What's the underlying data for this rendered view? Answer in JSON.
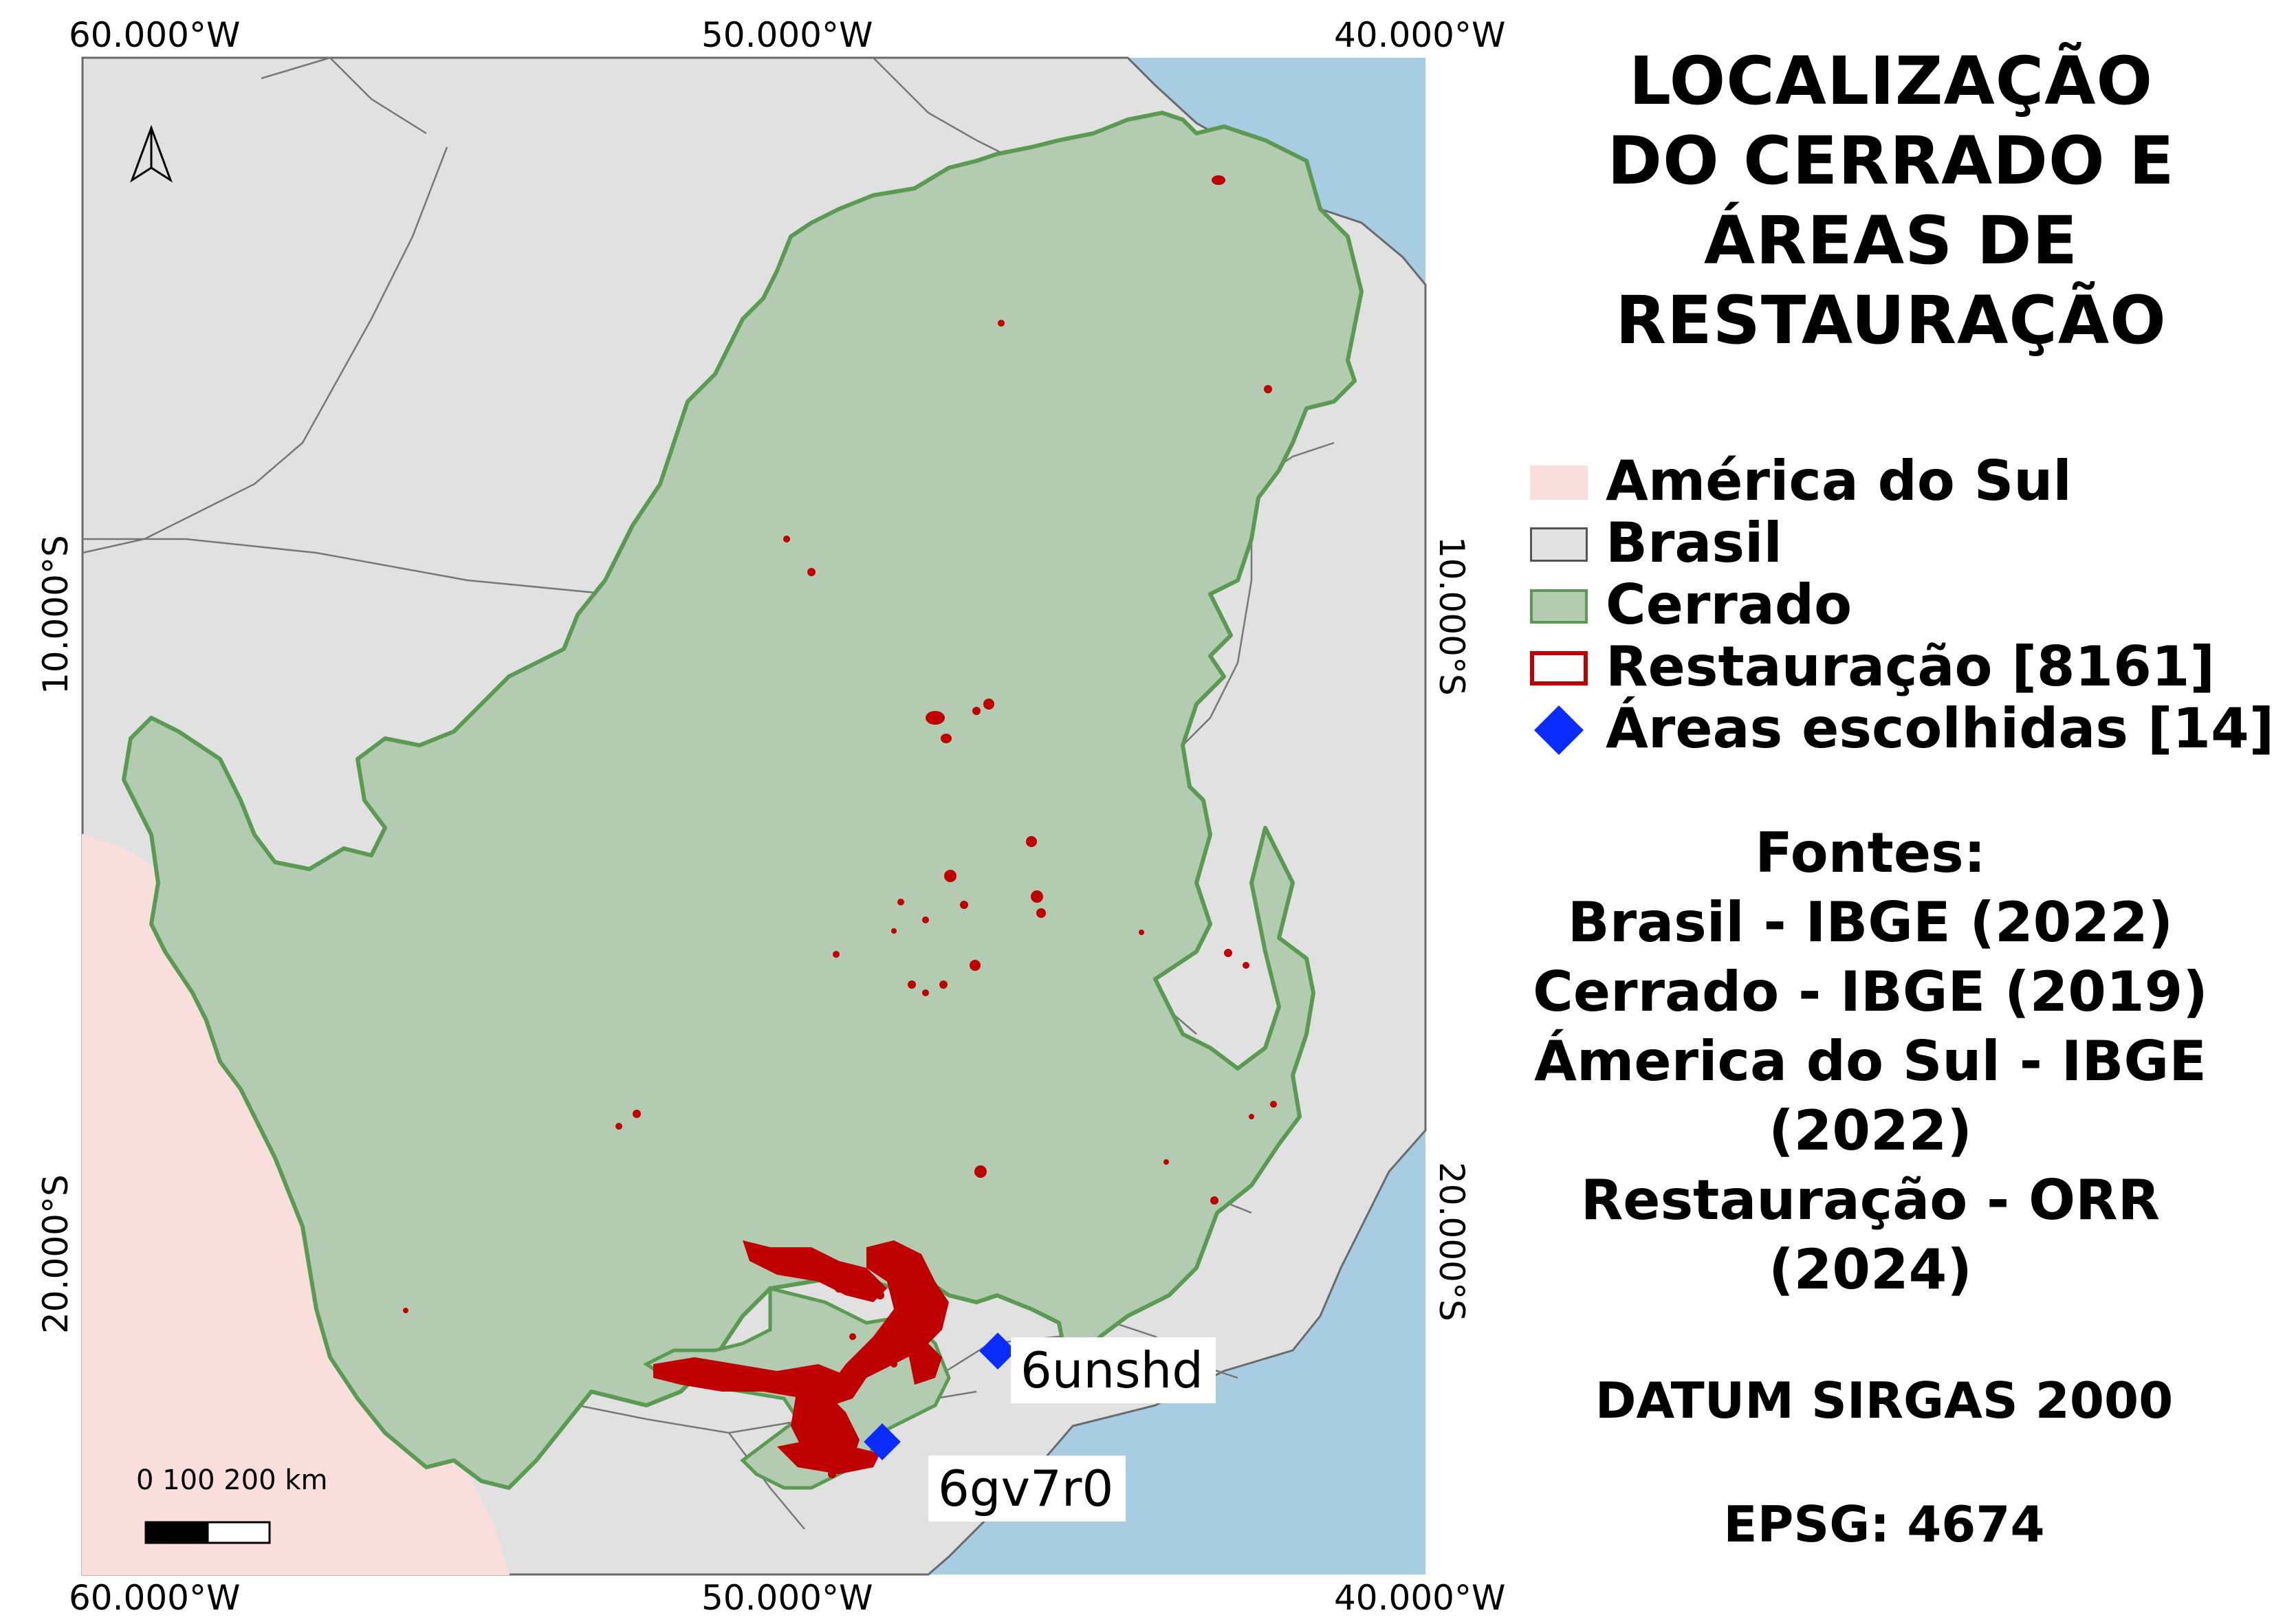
{
  "title_lines": [
    "LOCALIZAÇÃO",
    "DO CERRADO E",
    "ÁREAS DE",
    "RESTAURAÇÃO"
  ],
  "axis_labels": {
    "top": [
      "60.000°W",
      "50.000°W",
      "40.000°W"
    ],
    "bottom": [
      "60.000°W",
      "50.000°W",
      "40.000°W"
    ],
    "left": [
      "10.000°S",
      "20.000°S"
    ],
    "right": [
      "10.000°S",
      "20.000°S"
    ]
  },
  "legend": [
    {
      "label": "América do Sul",
      "fill": "#f9dedb",
      "stroke": "#f9dedb"
    },
    {
      "label": "Brasil",
      "fill": "#e1e1e1",
      "stroke": "#555555"
    },
    {
      "label": "Cerrado",
      "fill": "#b3cbb0",
      "stroke": "#5a9a52"
    },
    {
      "label": "Restauração [8161]",
      "fill": "#ffffff",
      "stroke": "#c00000"
    },
    {
      "label": "Áreas escolhidas [14]",
      "fill": "#0a2cff",
      "stroke": "#0a2cff",
      "shape": "diamond"
    }
  ],
  "sources_lines": [
    "Fontes:",
    "Brasil - IBGE (2022)",
    "Cerrado - IBGE (2019)",
    "Ámerica do Sul - IBGE",
    "(2022)",
    "Restauração - ORR",
    "(2024)"
  ],
  "datum": "DATUM SIRGAS 2000",
  "epsg": "EPSG: 4674",
  "scale_bar": {
    "text": "0   100 200 km"
  },
  "sites": [
    {
      "label": "6unshd"
    },
    {
      "label": "6gv7r0"
    }
  ],
  "colors": {
    "ocean": "#a8cde2",
    "brasil": "#e1e1e1",
    "south_america": "#f9dedb",
    "cerrado_fill": "#b3cbb0",
    "cerrado_stroke": "#5a9a52",
    "restoration": "#c00000",
    "chosen": "#0a2cff"
  },
  "icons": {
    "north_arrow": "north-arrow-icon",
    "chosen_marker": "diamond-icon"
  }
}
